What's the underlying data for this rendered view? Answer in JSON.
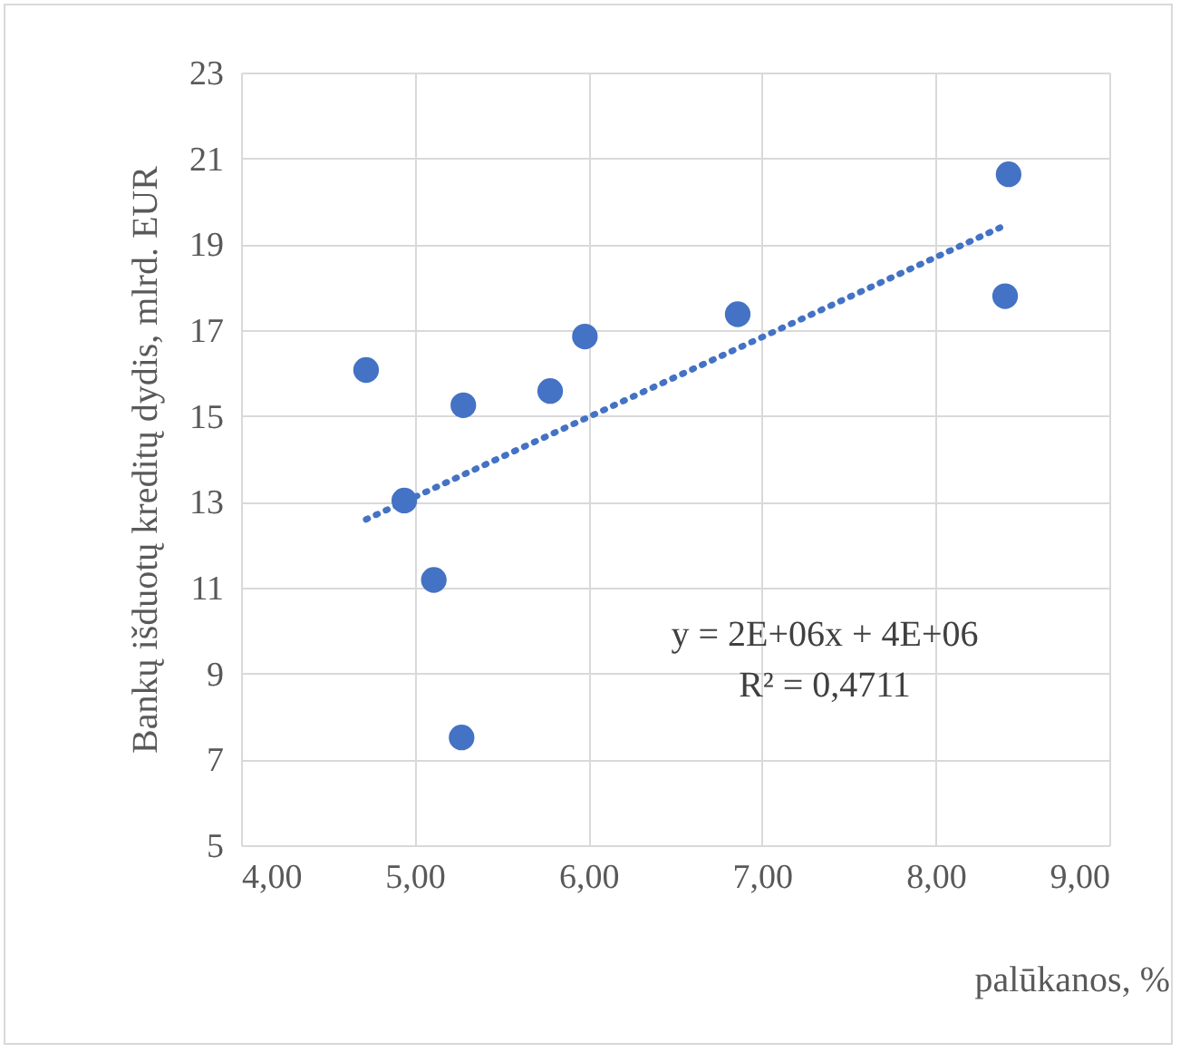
{
  "chart_data": {
    "type": "scatter",
    "xlabel": "palūkanos, %",
    "ylabel": "Bankų išduotų kreditų dydis, mlrd. EUR",
    "annotations": [
      "y = 2E+06x + 4E+06",
      "R² = 0,4711"
    ],
    "series": [
      {
        "type": "scatter",
        "color": "#4472c4",
        "marker": "circle",
        "x": [
          4.72,
          4.94,
          5.11,
          5.27,
          5.28,
          5.78,
          5.98,
          6.86,
          8.42,
          8.4
        ],
        "values": [
          16.07,
          13.03,
          11.18,
          7.51,
          15.25,
          15.58,
          16.85,
          17.37,
          20.63,
          17.79
        ]
      },
      {
        "type": "line",
        "color": "#4472c4",
        "line_style": "dotted",
        "x": [
          4.72,
          8.41
        ],
        "values": [
          12.59,
          19.46
        ]
      }
    ],
    "xlim": [
      4,
      9
    ],
    "xticks": [
      {
        "value": 4,
        "label": "4,00"
      },
      {
        "value": 5,
        "label": "5,00"
      },
      {
        "value": 6,
        "label": "6,00"
      },
      {
        "value": 7,
        "label": "7,00"
      },
      {
        "value": 8,
        "label": "8,00"
      },
      {
        "value": 9,
        "label": "9,00"
      }
    ],
    "ylim": [
      5,
      23
    ],
    "yticks": [
      5,
      7,
      9,
      11,
      13,
      15,
      17,
      19,
      21,
      23
    ],
    "grid": true
  }
}
